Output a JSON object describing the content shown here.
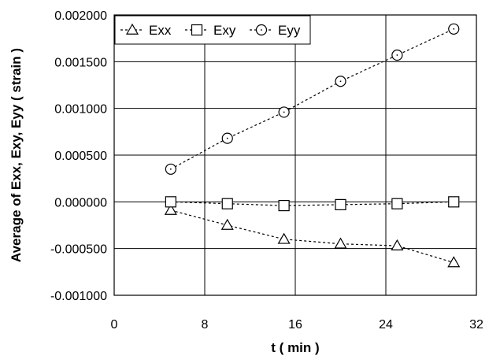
{
  "chart_data": {
    "type": "line",
    "xlabel": "t ( min )",
    "ylabel": "Average of Exx, Exy, Eyy ( strain )",
    "xlim": [
      0,
      32
    ],
    "ylim": [
      -0.001,
      0.002
    ],
    "x_ticks": [
      0,
      8,
      16,
      24,
      32
    ],
    "x_tick_labels": [
      "0",
      "8",
      "16",
      "24",
      "32"
    ],
    "y_ticks": [
      0.002,
      0.0015,
      0.001,
      0.0005,
      0.0,
      -0.0005,
      -0.001
    ],
    "y_tick_labels": [
      "0.002000",
      "0.001500",
      "0.001000",
      "0.000500",
      "0.000000",
      "-0.000500",
      "-0.001000"
    ],
    "grid": true,
    "legend_position": "top-left",
    "series": [
      {
        "name": "Exx",
        "marker": "triangle",
        "x": [
          5,
          10,
          15,
          20,
          25,
          30
        ],
        "y": [
          -9e-05,
          -0.00025,
          -0.0004,
          -0.00045,
          -0.00047,
          -0.00065
        ]
      },
      {
        "name": "Exy",
        "marker": "square",
        "x": [
          5,
          10,
          15,
          20,
          25,
          30
        ],
        "y": [
          0.0,
          -2e-05,
          -4e-05,
          -3e-05,
          -2e-05,
          0.0
        ]
      },
      {
        "name": "Eyy",
        "marker": "circle",
        "x": [
          5,
          10,
          15,
          20,
          25,
          30
        ],
        "y": [
          0.00035,
          0.00068,
          0.00096,
          0.00129,
          0.00157,
          0.00185
        ]
      }
    ]
  }
}
